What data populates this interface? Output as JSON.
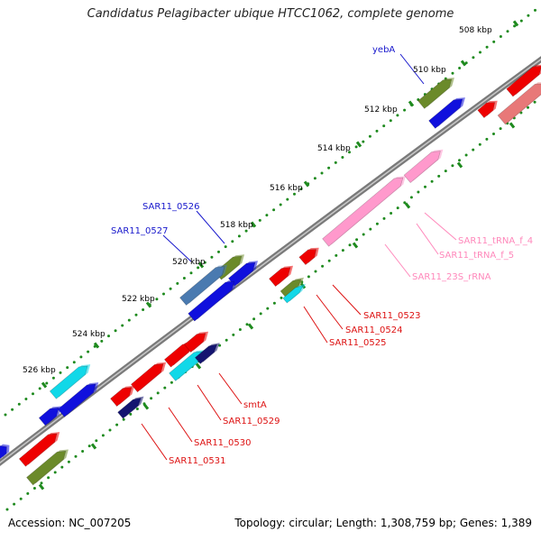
{
  "title": "Candidatus Pelagibacter ubique HTCC1062, complete genome",
  "footer": {
    "accession": "Accession: NC_007205",
    "topology": "Topology: circular; Length: 1,308,759 bp; Genes: 1,389"
  },
  "colors": {
    "backbone": "#7a7a7a",
    "tick": "#1e8a1e",
    "cds": "#ee0000",
    "cds_light": "#e87878",
    "green_feature": "#6b8a2a",
    "blue_feature": "#1010dd",
    "cyan_feature": "#11d8e8",
    "navy_feature": "#141470",
    "steel_feature": "#4a7ab0",
    "rna": "#ff99cc",
    "label_blue": "#1818cc",
    "label_red": "#dd1111",
    "label_pink": "#ff88bb"
  },
  "scale": {
    "unit": "kbp",
    "ticks": [
      "508 kbp",
      "510 kbp",
      "512 kbp",
      "514 kbp",
      "516 kbp",
      "518 kbp",
      "520 kbp",
      "522 kbp",
      "524 kbp",
      "526 kbp"
    ]
  },
  "labels": [
    {
      "text": "yebA",
      "color": "blue"
    },
    {
      "text": "SAR11_0526",
      "color": "blue"
    },
    {
      "text": "SAR11_0527",
      "color": "blue"
    },
    {
      "text": "SAR11_tRNA_f_4",
      "color": "pink"
    },
    {
      "text": "SAR11_tRNA_f_5",
      "color": "pink"
    },
    {
      "text": "SAR11_23S_rRNA",
      "color": "pink"
    },
    {
      "text": "SAR11_0523",
      "color": "red"
    },
    {
      "text": "SAR11_0524",
      "color": "red"
    },
    {
      "text": "SAR11_0525",
      "color": "red"
    },
    {
      "text": "smtA",
      "color": "red"
    },
    {
      "text": "SAR11_0529",
      "color": "red"
    },
    {
      "text": "SAR11_0530",
      "color": "red"
    },
    {
      "text": "SAR11_0531",
      "color": "red"
    }
  ]
}
